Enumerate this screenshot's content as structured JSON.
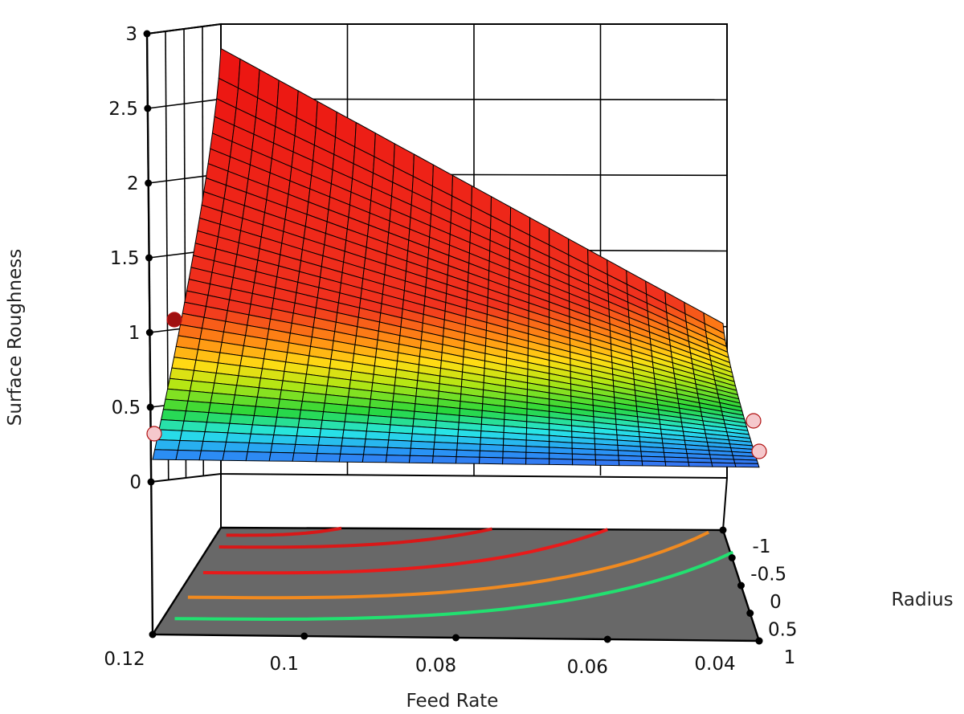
{
  "chart_data": {
    "type": "surface3d",
    "title": "",
    "xlabel": "Feed Rate",
    "ylabel": "Radius",
    "zlabel": "Surface Roughness",
    "x_ticks": [
      "0.12",
      "0.1",
      "0.08",
      "0.06",
      "0.04"
    ],
    "y_ticks": [
      "-1",
      "-0.5",
      "0",
      "0.5",
      "1"
    ],
    "z_ticks": [
      "0",
      "0.5",
      "1",
      "1.5",
      "2",
      "2.5",
      "3"
    ],
    "xlim": [
      0.04,
      0.12
    ],
    "ylim": [
      -1,
      1
    ],
    "zlim": [
      0,
      3
    ],
    "surface_corners": [
      {
        "feed_rate": 0.12,
        "radius": -1,
        "roughness": 2.8
      },
      {
        "feed_rate": 0.04,
        "radius": -1,
        "roughness": 0.95
      },
      {
        "feed_rate": 0.12,
        "radius": 1,
        "roughness": 0.15
      },
      {
        "feed_rate": 0.04,
        "radius": 1,
        "roughness": 0.1
      }
    ],
    "design_points": [
      {
        "feed_rate": 0.12,
        "radius": 0,
        "roughness": 1.0,
        "color": "#a01010"
      },
      {
        "feed_rate": 0.12,
        "radius": 1,
        "roughness": 0.3,
        "color": "#f5c8cc"
      },
      {
        "feed_rate": 0.04,
        "radius": 0.5,
        "roughness": 0.35,
        "color": "#f5c8cc"
      },
      {
        "feed_rate": 0.04,
        "radius": 1,
        "roughness": 0.25,
        "color": "#f5c8cc"
      }
    ],
    "contour_colors": [
      "#d81818",
      "#e81a1a",
      "#f08a20",
      "#22e070"
    ],
    "floor_color": "#686868",
    "grid": true
  }
}
